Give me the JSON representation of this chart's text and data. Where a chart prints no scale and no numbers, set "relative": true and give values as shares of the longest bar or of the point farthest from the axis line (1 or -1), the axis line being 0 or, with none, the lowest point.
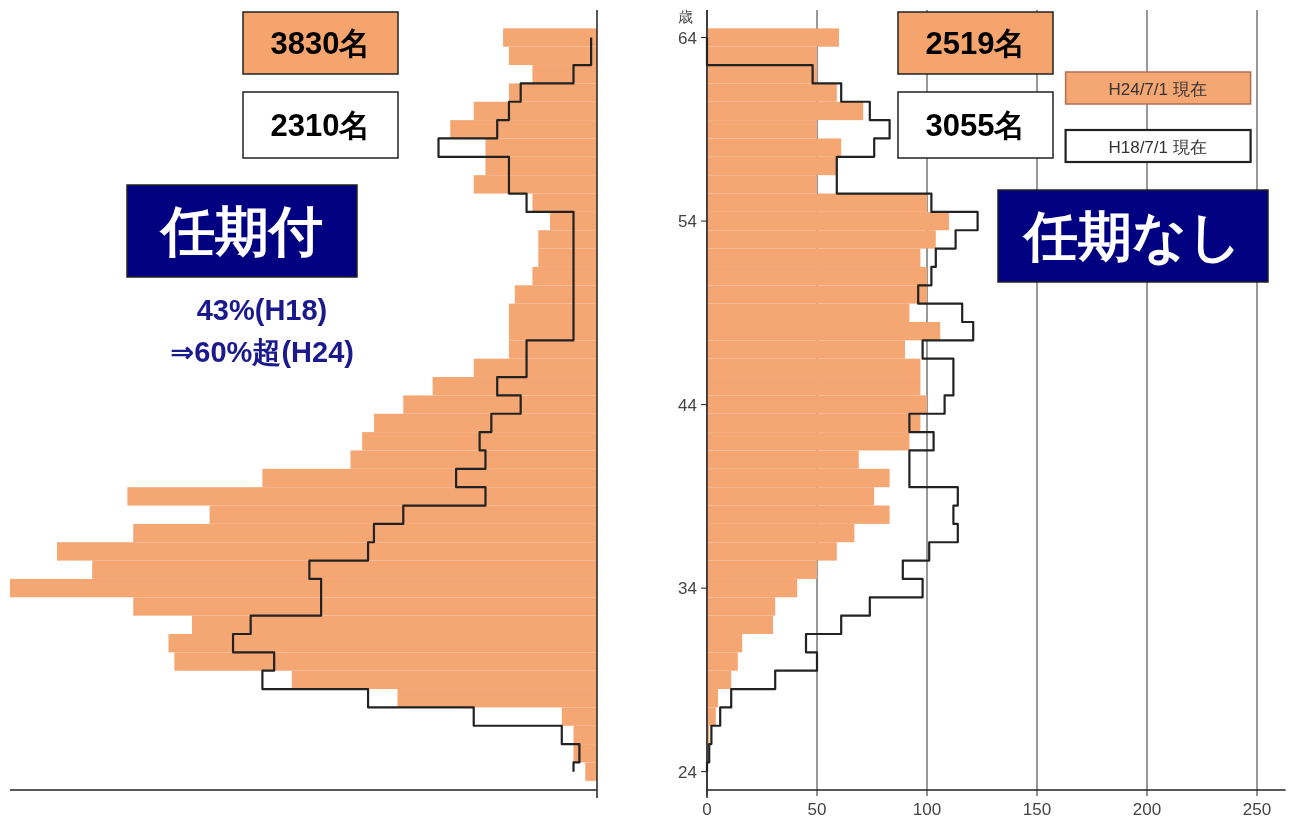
{
  "chart_data": [
    {
      "type": "bar",
      "orientation": "horizontal",
      "relative": true,
      "ylim": [
        23,
        65.5
      ],
      "x": [
        24,
        25,
        26,
        27,
        28,
        29,
        30,
        31,
        32,
        33,
        34,
        35,
        36,
        37,
        38,
        39,
        40,
        41,
        42,
        43,
        44,
        45,
        46,
        47,
        48,
        49,
        50,
        51,
        52,
        53,
        54,
        55,
        56,
        57,
        58,
        59,
        60,
        61,
        62,
        63,
        64
      ],
      "series": [
        {
          "color": "#f4a673",
          "values": [
            -0.02,
            -0.04,
            -0.04,
            -0.06,
            -0.34,
            -0.52,
            -0.72,
            -0.73,
            -0.69,
            -0.79,
            -1,
            -0.86,
            -0.92,
            -0.79,
            -0.66,
            -0.8,
            -0.57,
            -0.42,
            -0.4,
            -0.38,
            -0.33,
            -0.28,
            -0.21,
            -0.15,
            -0.15,
            -0.15,
            -0.14,
            -0.11,
            -0.1,
            -0.1,
            -0.08,
            -0.11,
            -0.21,
            -0.19,
            -0.19,
            -0.25,
            -0.21,
            -0.15,
            -0.11,
            -0.15,
            -0.16
          ]
        },
        {
          "type": "step",
          "color": "#222222",
          "values": [
            -0.04,
            -0.03,
            -0.06,
            -0.21,
            -0.39,
            -0.57,
            -0.55,
            -0.62,
            -0.59,
            -0.47,
            -0.47,
            -0.49,
            -0.39,
            -0.38,
            -0.33,
            -0.19,
            -0.24,
            -0.19,
            -0.2,
            -0.18,
            -0.13,
            -0.17,
            -0.12,
            -0.12,
            -0.04,
            -0.04,
            -0.04,
            -0.04,
            -0.04,
            -0.04,
            -0.04,
            -0.12,
            -0.15,
            -0.15,
            -0.27,
            -0.17,
            -0.15,
            -0.13,
            -0.04,
            -0.01,
            -0.01
          ]
        }
      ],
      "annotations": [
        "3830名",
        "2310名",
        "任期付",
        "43%(H18)",
        "⇒60%超(H24)"
      ]
    },
    {
      "type": "bar",
      "orientation": "horizontal",
      "xlim": [
        0,
        263
      ],
      "xticks": [
        0,
        50,
        100,
        150,
        200,
        250
      ],
      "ylim": [
        23,
        65.5
      ],
      "yticks": [
        24,
        34,
        44,
        54,
        64
      ],
      "ylabel": "歳",
      "grid": "x",
      "legend": "top right",
      "x": [
        24,
        25,
        26,
        27,
        28,
        29,
        30,
        31,
        32,
        33,
        34,
        35,
        36,
        37,
        38,
        39,
        40,
        41,
        42,
        43,
        44,
        45,
        46,
        47,
        48,
        49,
        50,
        51,
        52,
        53,
        54,
        55,
        56,
        57,
        58,
        59,
        60,
        61,
        62,
        63,
        64
      ],
      "series": [
        {
          "name": "H24/7/1 現在",
          "color": "#f4a673",
          "values": [
            0,
            0,
            1,
            4,
            5,
            11,
            14,
            16,
            30,
            31,
            41,
            50,
            59,
            67,
            83,
            76,
            83,
            69,
            92,
            97,
            100,
            97,
            97,
            90,
            106,
            92,
            100,
            100,
            97,
            104,
            110,
            100,
            50,
            59,
            61,
            50,
            71,
            59,
            50,
            50,
            60
          ]
        },
        {
          "name": "H18/7/1 現在",
          "type": "step",
          "color": "#222222",
          "values": [
            0,
            1,
            2,
            6,
            11,
            31,
            50,
            45,
            61,
            74,
            98,
            89,
            101,
            114,
            112,
            114,
            92,
            92,
            103,
            92,
            108,
            112,
            112,
            98,
            121,
            116,
            96,
            102,
            104,
            113,
            123,
            102,
            59,
            59,
            76,
            83,
            74,
            61,
            48,
            0,
            0
          ]
        }
      ],
      "annotations": [
        "2519名",
        "3055名",
        "任期なし"
      ]
    }
  ]
}
